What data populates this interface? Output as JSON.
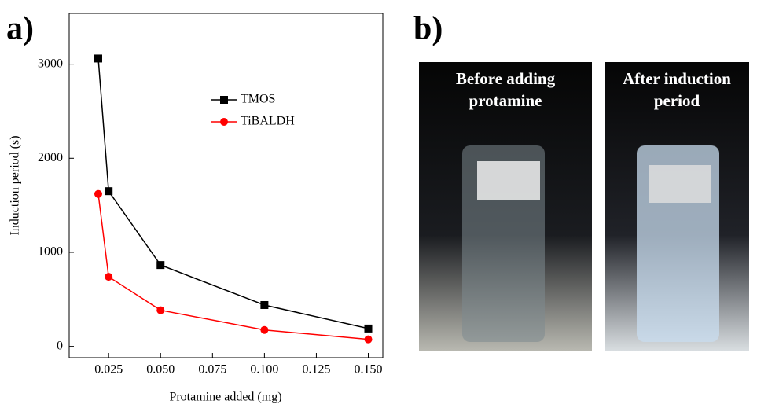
{
  "chart_data": {
    "type": "line",
    "x_label": "Protamine added (mg)",
    "y_label": "Induction period (s)",
    "x": [
      0.02,
      0.025,
      0.05,
      0.1,
      0.15
    ],
    "series": [
      {
        "name": "TMOS",
        "color": "#000000",
        "marker": "square",
        "values": [
          3060,
          1650,
          865,
          440,
          190
        ]
      },
      {
        "name": "TiBALDH",
        "color": "#ff0000",
        "marker": "circle",
        "values": [
          1620,
          740,
          385,
          175,
          75
        ]
      }
    ],
    "xlim": [
      0.006,
      0.157
    ],
    "ylim": [
      -120,
      3540
    ],
    "xticks": [
      0.025,
      {
        "value": 0.05,
        "label": "0.050"
      },
      0.075,
      {
        "value": 0.1,
        "label": "0.100"
      },
      0.125,
      {
        "value": 0.15,
        "label": "0.150"
      }
    ],
    "yticks": [
      0,
      1000,
      2000,
      3000
    ],
    "legend": "upper-right"
  },
  "panels": {
    "a": "a)",
    "b": "b)"
  },
  "photos": [
    {
      "caption": [
        "Before adding",
        "protamine"
      ]
    },
    {
      "caption": [
        "After induction",
        "period"
      ]
    }
  ]
}
